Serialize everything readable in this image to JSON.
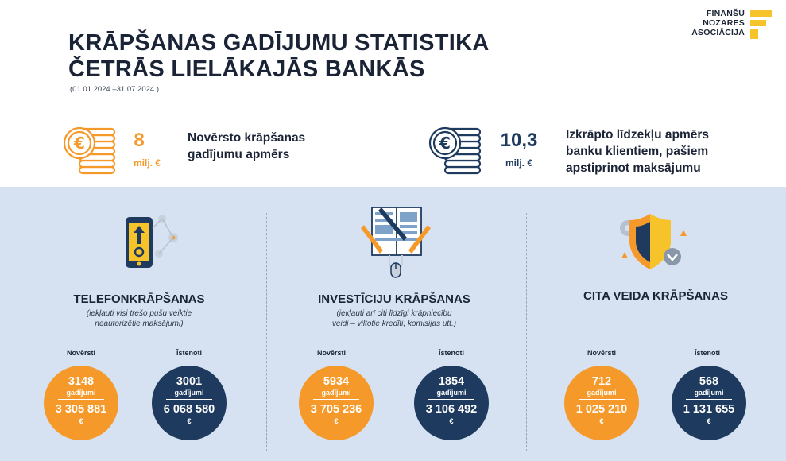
{
  "header": {
    "title_line1": "KRĀPŠANAS GADĪJUMU STATISTIKA",
    "title_line2": "ČETRĀS LIELĀKAJĀS BANKĀS",
    "period": "(01.01.2024.–31.07.2024.)"
  },
  "logo": {
    "line1": "FINANŠU",
    "line2": "NOZARES",
    "line3": "ASOCIĀCIJA",
    "accent": "#f7c32b"
  },
  "summary": [
    {
      "value": "8",
      "unit": "milj. €",
      "text_line1": "Novērsto krāpšanas",
      "text_line2": "gadījumu apmērs",
      "color": "#f59a2a"
    },
    {
      "value": "10,3",
      "unit": "milj. €",
      "text_line1": "Izkrāpto līdzekļu apmērs",
      "text_line2": "banku klientiem, pašiem",
      "text_line3": "apstiprinot maksājumu",
      "color": "#1e3a5f"
    }
  ],
  "columns": [
    {
      "title": "TELEFONKRĀPŠANAS",
      "subtitle_line1": "(iekļauti visi trešo pušu veiktie",
      "subtitle_line2": "neautorizētie maksājumi)",
      "prevented_label": "Novērsti",
      "executed_label": "Īstenoti",
      "prevented": {
        "count": "3148",
        "unit": "gadījumi",
        "amount": "3 305 881",
        "currency": "€"
      },
      "executed": {
        "count": "3001",
        "unit": "gadījumi",
        "amount": "6 068 580",
        "currency": "€"
      }
    },
    {
      "title": "INVESTĪCIJU KRĀPŠANAS",
      "subtitle_line1": "(iekļauti arī citi līdzīgi krāpniecību",
      "subtitle_line2": "veidi – viltotie kredīti, komisijas utt.)",
      "prevented_label": "Novērsti",
      "executed_label": "Īstenoti",
      "prevented": {
        "count": "5934",
        "unit": "gadījumi",
        "amount": "3 705 236",
        "currency": "€"
      },
      "executed": {
        "count": "1854",
        "unit": "gadījumi",
        "amount": "3 106 492",
        "currency": "€"
      }
    },
    {
      "title": "CITA VEIDA KRĀPŠANAS",
      "subtitle_line1": "",
      "subtitle_line2": "",
      "prevented_label": "Novērsti",
      "executed_label": "Īstenoti",
      "prevented": {
        "count": "712",
        "unit": "gadījumi",
        "amount": "1 025 210",
        "currency": "€"
      },
      "executed": {
        "count": "568",
        "unit": "gadījumi",
        "amount": "1 131 655",
        "currency": "€"
      }
    }
  ],
  "colors": {
    "orange": "#f59a2a",
    "navy": "#1e3a5f",
    "panel": "#d6e2f1"
  },
  "icons": [
    "coins-euro-icon",
    "coins-euro-icon",
    "smartphone-icon",
    "book-pens-icon",
    "shield-icon"
  ]
}
